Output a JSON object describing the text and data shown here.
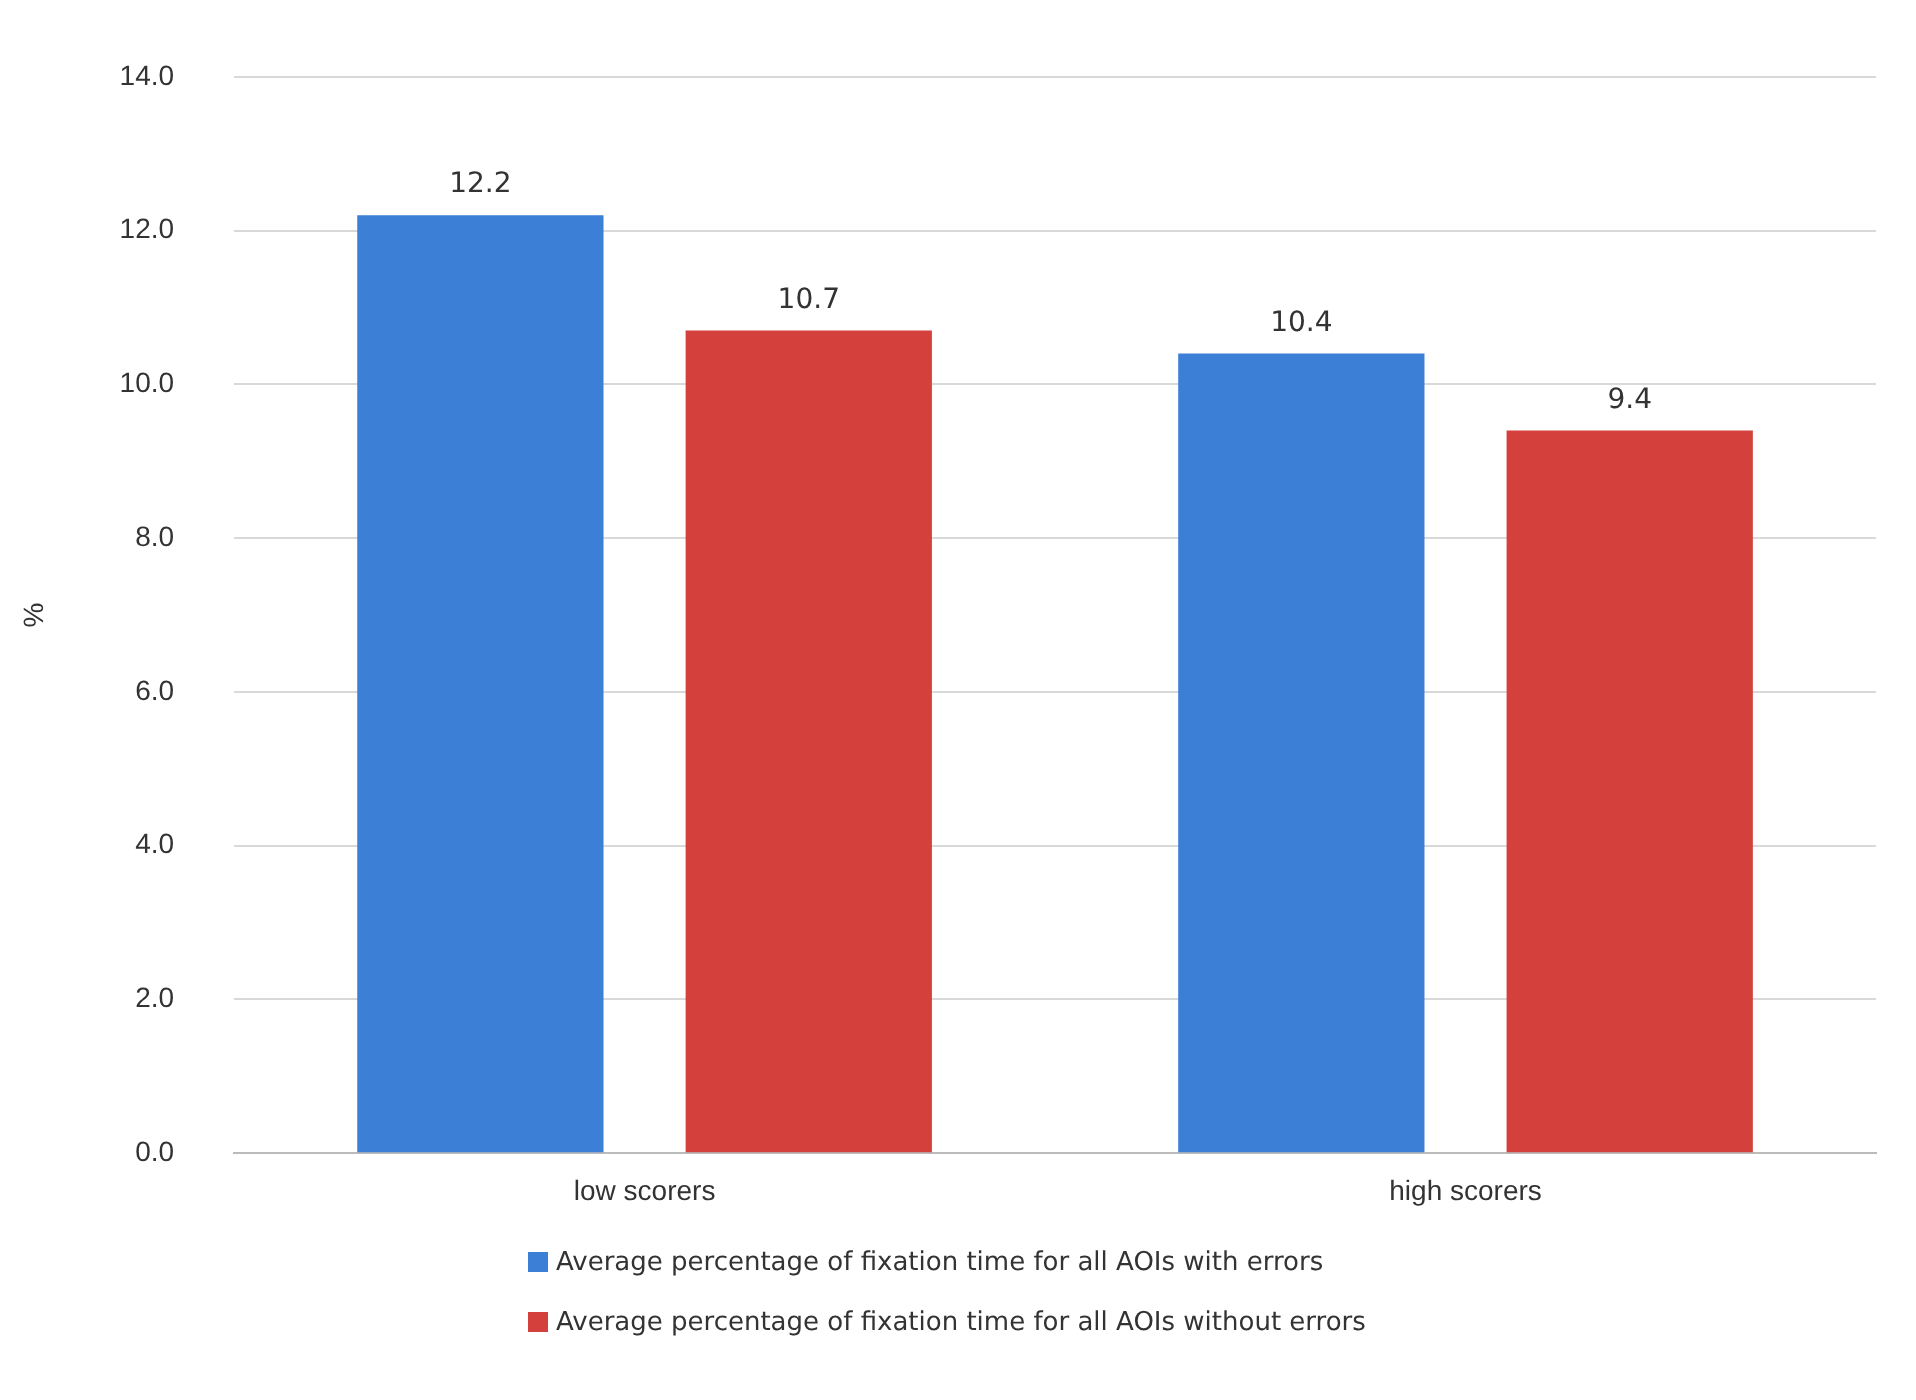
{
  "chart_data": {
    "type": "bar",
    "ylabel": "%",
    "categories": [
      "low scorers",
      "high scorers"
    ],
    "series": [
      {
        "name": "Average percentage of fixation time for all  AOIs with errors",
        "color": "#3b7fd6",
        "values": [
          12.2,
          10.4
        ]
      },
      {
        "name": "Average percentage of fixation time for all  AOIs without errors",
        "color": "#d4413c",
        "values": [
          10.7,
          9.4
        ]
      }
    ],
    "ylim": [
      0,
      14
    ],
    "yticks": [
      {
        "value": 0,
        "label": "0.0"
      },
      {
        "value": 2,
        "label": "2.0"
      },
      {
        "value": 4,
        "label": "4.0"
      },
      {
        "value": 6,
        "label": "6.0"
      },
      {
        "value": 8,
        "label": "8.0"
      },
      {
        "value": 10,
        "label": "10.0"
      },
      {
        "value": 12,
        "label": "12.0"
      },
      {
        "value": 14,
        "label": "14.0"
      }
    ],
    "grid": "y",
    "legend": "bottom",
    "data_labels": true
  }
}
